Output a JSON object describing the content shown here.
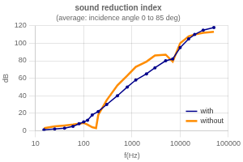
{
  "chart_data": {
    "type": "line",
    "title": "sound reduction index",
    "subtitle": "(average: incidence angle 0 to 85 deg)",
    "xlabel": "f(Hz)",
    "ylabel": "dB",
    "log": "x",
    "xlim": [
      10,
      100000
    ],
    "ylim": [
      0,
      120
    ],
    "xticks": [
      10,
      100,
      1000,
      10000,
      100000
    ],
    "yticks": [
      0,
      20,
      40,
      60,
      80,
      100,
      120
    ],
    "grid": true,
    "legend": "lower right",
    "series": [
      {
        "name": "with",
        "color": "#00008B",
        "marker": "circle",
        "x": [
          15,
          25,
          40,
          60,
          80,
          100,
          120,
          150,
          200,
          300,
          500,
          800,
          1200,
          2000,
          3000,
          5000,
          7000,
          10000,
          15000,
          20000,
          30000,
          50000
        ],
        "values": [
          1,
          2,
          3,
          5,
          8,
          10,
          12,
          18,
          22,
          30,
          40,
          50,
          58,
          65,
          72,
          80,
          82,
          95,
          105,
          110,
          115,
          118
        ]
      },
      {
        "name": "without",
        "color": "#FF8C00",
        "x": [
          15,
          25,
          40,
          60,
          80,
          100,
          120,
          150,
          180,
          200,
          300,
          500,
          800,
          1200,
          2000,
          3000,
          5000,
          7000,
          10000,
          15000,
          20000,
          30000,
          50000
        ],
        "values": [
          3,
          5,
          6,
          7,
          8,
          9,
          7,
          4,
          3,
          18,
          35,
          52,
          63,
          73,
          79,
          86,
          87,
          79,
          100,
          108,
          110,
          112,
          113
        ]
      }
    ]
  }
}
